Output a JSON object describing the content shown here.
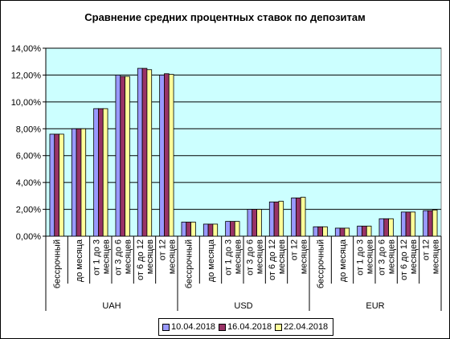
{
  "chart_data": {
    "type": "bar",
    "title": "Сравнение средних процентных ставок по депозитам",
    "xlabel": "",
    "ylabel": "",
    "ylim": [
      0,
      14
    ],
    "y_ticks": [
      "0,00%",
      "2,00%",
      "4,00%",
      "6,00%",
      "8,00%",
      "10,00%",
      "12,00%",
      "14,00%"
    ],
    "grid": true,
    "legend_position": "bottom",
    "groups": [
      {
        "name": "UAH",
        "categories": [
          [
            "бессрочный"
          ],
          [
            "до месяца"
          ],
          [
            "от 1 до 3",
            "месяцев"
          ],
          [
            "от 3 до 6",
            "месяцев"
          ],
          [
            "от 6 до 12",
            "месяцев"
          ],
          [
            "от 12",
            "месяцев"
          ]
        ]
      },
      {
        "name": "USD",
        "categories": [
          [
            "бессрочный"
          ],
          [
            "до месяца"
          ],
          [
            "от 1 до 3",
            "месяцев"
          ],
          [
            "от 3 до 6",
            "месяцев"
          ],
          [
            "от 6 до 12",
            "месяцев"
          ],
          [
            "от 12",
            "месяцев"
          ]
        ]
      },
      {
        "name": "EUR",
        "categories": [
          [
            "бессрочный"
          ],
          [
            "до месяца"
          ],
          [
            "от 1 до 3",
            "месяцев"
          ],
          [
            "от 3 до 6",
            "месяцев"
          ],
          [
            "от 6 до 12",
            "месяцев"
          ],
          [
            "от 12",
            "месяцев"
          ]
        ]
      }
    ],
    "series": [
      {
        "name": "10.04.2018",
        "color": "#9999ff",
        "values": [
          7.6,
          8.0,
          9.5,
          12.0,
          12.5,
          12.0,
          1.05,
          0.9,
          1.1,
          2.0,
          2.55,
          2.85,
          0.7,
          0.6,
          0.75,
          1.3,
          1.8,
          1.9
        ]
      },
      {
        "name": "16.04.2018",
        "color": "#993366",
        "values": [
          7.6,
          8.0,
          9.5,
          11.9,
          12.5,
          12.1,
          1.05,
          0.9,
          1.1,
          2.0,
          2.55,
          2.85,
          0.7,
          0.6,
          0.75,
          1.3,
          1.8,
          1.9
        ]
      },
      {
        "name": "22.04.2018",
        "color": "#ffff99",
        "values": [
          7.6,
          8.0,
          9.5,
          11.9,
          12.4,
          12.05,
          1.05,
          0.9,
          1.1,
          2.0,
          2.6,
          2.9,
          0.7,
          0.6,
          0.75,
          1.3,
          1.8,
          1.95
        ]
      }
    ]
  },
  "colors": {
    "plot_background": "#ccffff",
    "gridline": "#000000"
  }
}
